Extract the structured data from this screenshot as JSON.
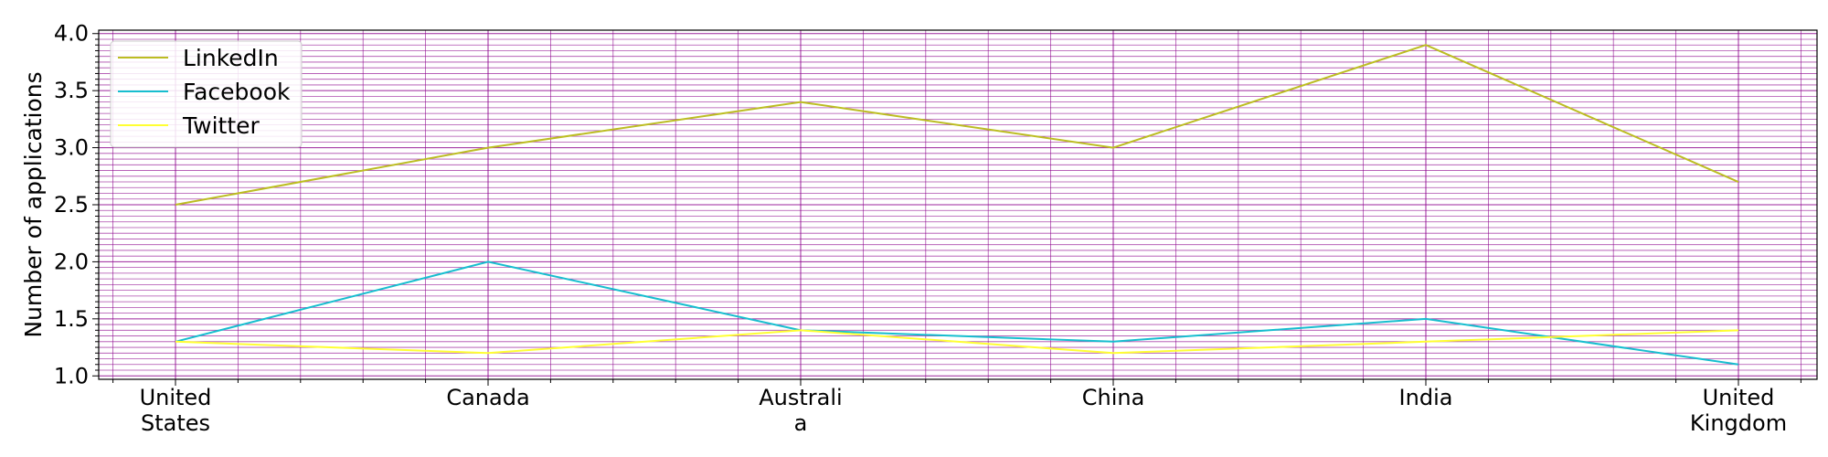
{
  "chart_data": {
    "type": "line",
    "categories": [
      [
        "United",
        "States"
      ],
      [
        "Canada"
      ],
      [
        "Australi",
        "a"
      ],
      [
        "China"
      ],
      [
        "India"
      ],
      [
        "United",
        "Kingdom"
      ]
    ],
    "series": [
      {
        "name": "LinkedIn",
        "color": "#bcbd22",
        "values": [
          2.5,
          3.0,
          3.4,
          3.0,
          3.9,
          2.7
        ]
      },
      {
        "name": "Facebook",
        "color": "#17becf",
        "values": [
          1.3,
          2.0,
          1.4,
          1.3,
          1.5,
          1.1
        ]
      },
      {
        "name": "Twitter",
        "color": "#ffff33",
        "values": [
          1.3,
          1.2,
          1.4,
          1.2,
          1.3,
          1.4
        ]
      }
    ],
    "title": "",
    "xlabel": "",
    "ylabel": "Number of applications",
    "ylim": [
      0.97,
      4.03
    ],
    "yticks": [
      "1.0",
      "1.5",
      "2.0",
      "2.5",
      "3.0",
      "3.5",
      "4.0"
    ],
    "grid": {
      "enabled": true,
      "minor": true,
      "color": "#8b008b"
    },
    "legend": {
      "position": "top-left"
    }
  }
}
